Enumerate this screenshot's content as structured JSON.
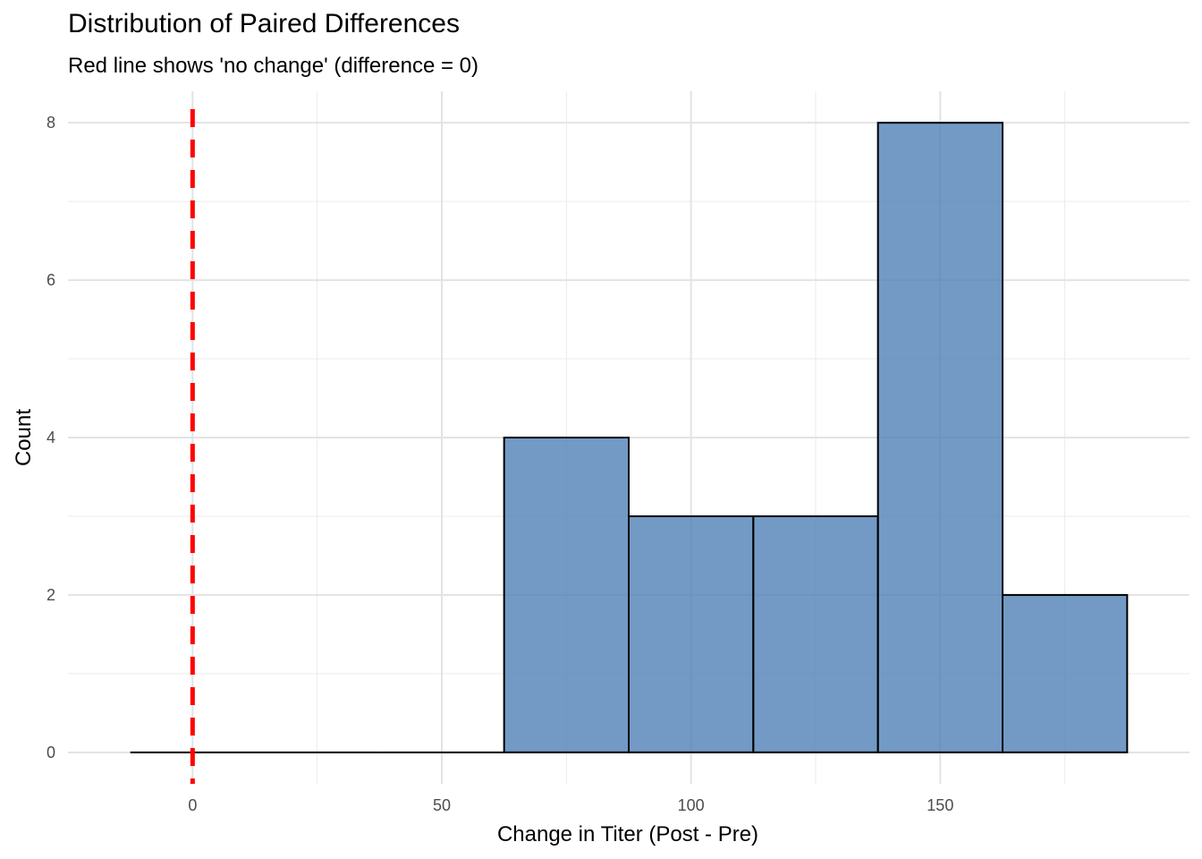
{
  "chart_data": {
    "type": "bar",
    "title": "Distribution of Paired Differences",
    "subtitle": "Red line shows 'no change' (difference = 0)",
    "xlabel": "Change in Titer (Post - Pre)",
    "ylabel": "Count",
    "bin_width": 25,
    "bins": [
      {
        "x_start": -12.5,
        "x_end": 12.5,
        "count": 0
      },
      {
        "x_start": 12.5,
        "x_end": 37.5,
        "count": 0
      },
      {
        "x_start": 37.5,
        "x_end": 62.5,
        "count": 0
      },
      {
        "x_start": 62.5,
        "x_end": 87.5,
        "count": 4
      },
      {
        "x_start": 87.5,
        "x_end": 112.5,
        "count": 3
      },
      {
        "x_start": 112.5,
        "x_end": 137.5,
        "count": 3
      },
      {
        "x_start": 137.5,
        "x_end": 162.5,
        "count": 8
      },
      {
        "x_start": 162.5,
        "x_end": 187.5,
        "count": 2
      }
    ],
    "xlim": [
      -25,
      200
    ],
    "ylim": [
      -0.4,
      8.4
    ],
    "x_ticks": [
      0,
      50,
      100,
      150
    ],
    "x_minor_ticks": [
      25,
      75,
      125,
      175
    ],
    "y_ticks": [
      0,
      2,
      4,
      6,
      8
    ],
    "y_minor_ticks": [
      1,
      3,
      5,
      7
    ],
    "reference_line": {
      "x": 0,
      "color": "#ff0000",
      "style": "dashed"
    },
    "fill_color": "#4a7db5",
    "fill_opacity": 0.78,
    "edge_color": "#000000",
    "grid": true,
    "legend": false
  }
}
